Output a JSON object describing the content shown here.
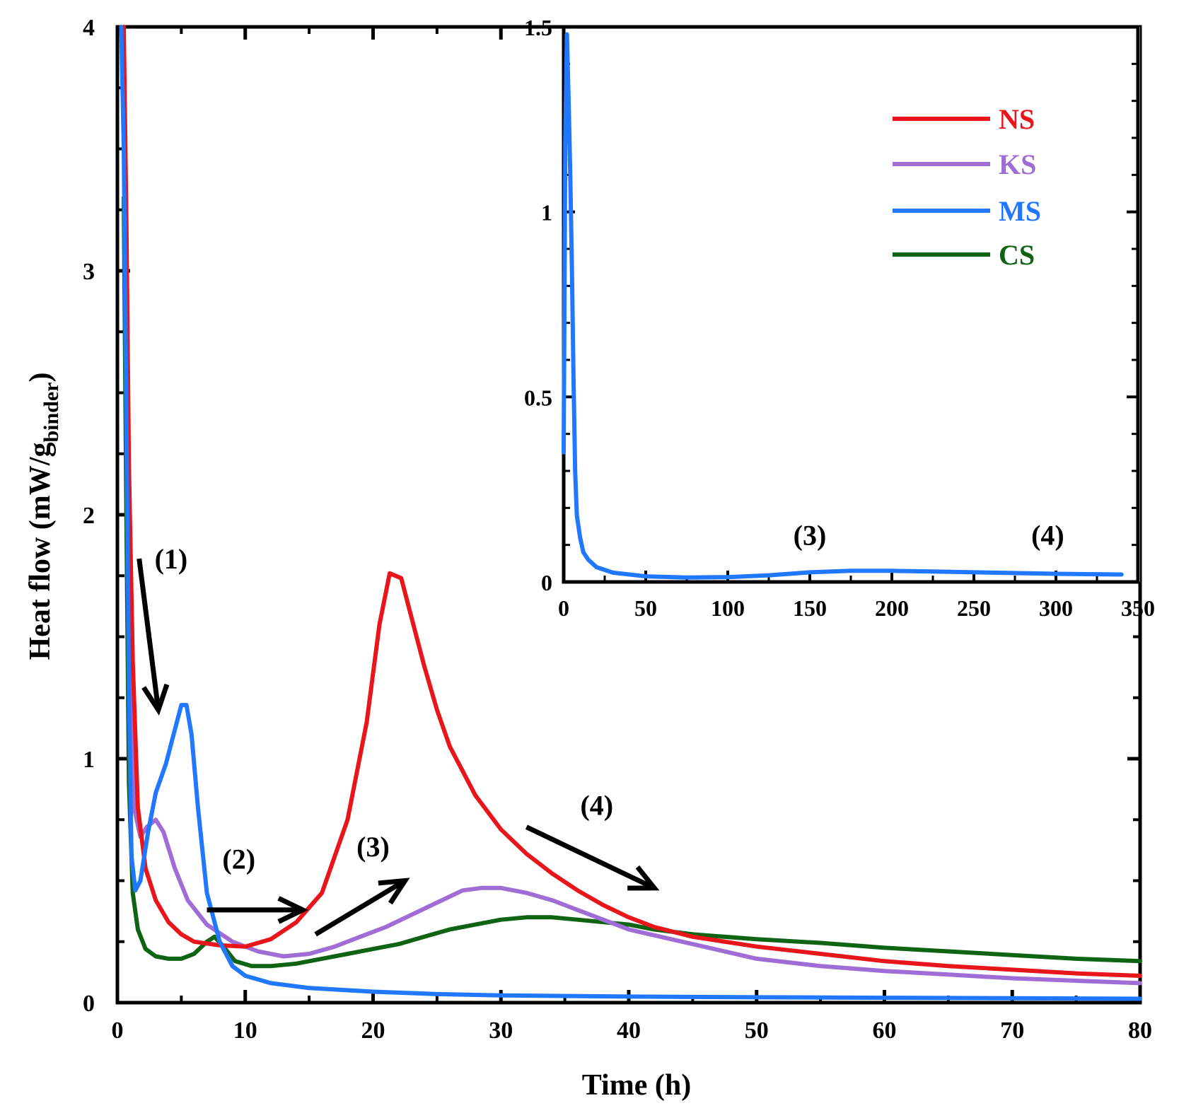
{
  "chart_data": [
    {
      "type": "line",
      "title": "",
      "xlabel": "Time (h)",
      "ylabel_main": "Heat flow (mW/g",
      "ylabel_sub": "binder",
      "ylabel_close": ")",
      "xlim": [
        0,
        80
      ],
      "ylim": [
        0,
        4
      ],
      "xticks": [
        "0",
        "10",
        "20",
        "30",
        "40",
        "50",
        "60",
        "70",
        "80"
      ],
      "yticks": [
        "0",
        "1",
        "2",
        "3",
        "4"
      ],
      "legend_position": "top-right",
      "series": [
        {
          "name": "NS",
          "color": "#e8161b",
          "points": [
            [
              0.5,
              4.0
            ],
            [
              0.7,
              3.2
            ],
            [
              0.9,
              2.2
            ],
            [
              1.2,
              1.4
            ],
            [
              1.6,
              0.8
            ],
            [
              2.2,
              0.55
            ],
            [
              3,
              0.42
            ],
            [
              4,
              0.33
            ],
            [
              5,
              0.28
            ],
            [
              6,
              0.25
            ],
            [
              8,
              0.235
            ],
            [
              10,
              0.23
            ],
            [
              12,
              0.26
            ],
            [
              14,
              0.33
            ],
            [
              16,
              0.45
            ],
            [
              18,
              0.75
            ],
            [
              19.5,
              1.15
            ],
            [
              20.5,
              1.55
            ],
            [
              21.3,
              1.76
            ],
            [
              22.2,
              1.74
            ],
            [
              23,
              1.58
            ],
            [
              24,
              1.38
            ],
            [
              25,
              1.2
            ],
            [
              26,
              1.05
            ],
            [
              28,
              0.85
            ],
            [
              30,
              0.71
            ],
            [
              32,
              0.61
            ],
            [
              34,
              0.53
            ],
            [
              36,
              0.46
            ],
            [
              38,
              0.4
            ],
            [
              40,
              0.35
            ],
            [
              42,
              0.31
            ],
            [
              45,
              0.27
            ],
            [
              50,
              0.23
            ],
            [
              55,
              0.2
            ],
            [
              60,
              0.17
            ],
            [
              65,
              0.15
            ],
            [
              70,
              0.135
            ],
            [
              75,
              0.12
            ],
            [
              80,
              0.11
            ]
          ]
        },
        {
          "name": "KS",
          "color": "#a06cd5",
          "points": [
            [
              0.5,
              3.8
            ],
            [
              0.8,
              2.6
            ],
            [
              1.0,
              1.4
            ],
            [
              1.3,
              0.8
            ],
            [
              1.8,
              0.68
            ],
            [
              2.3,
              0.72
            ],
            [
              3,
              0.75
            ],
            [
              3.6,
              0.7
            ],
            [
              4.5,
              0.55
            ],
            [
              5.5,
              0.42
            ],
            [
              7,
              0.32
            ],
            [
              9,
              0.25
            ],
            [
              11,
              0.21
            ],
            [
              13,
              0.19
            ],
            [
              15,
              0.2
            ],
            [
              17,
              0.23
            ],
            [
              19,
              0.27
            ],
            [
              21,
              0.31
            ],
            [
              23,
              0.36
            ],
            [
              25,
              0.41
            ],
            [
              27,
              0.46
            ],
            [
              28.5,
              0.47
            ],
            [
              30,
              0.47
            ],
            [
              32,
              0.45
            ],
            [
              34,
              0.42
            ],
            [
              36,
              0.38
            ],
            [
              38,
              0.34
            ],
            [
              40,
              0.3
            ],
            [
              45,
              0.24
            ],
            [
              50,
              0.18
            ],
            [
              55,
              0.15
            ],
            [
              60,
              0.13
            ],
            [
              65,
              0.115
            ],
            [
              70,
              0.1
            ],
            [
              75,
              0.09
            ],
            [
              80,
              0.08
            ]
          ]
        },
        {
          "name": "MS",
          "color": "#1f78ff",
          "points": [
            [
              0.3,
              4.0
            ],
            [
              0.5,
              3.5
            ],
            [
              0.7,
              2.4
            ],
            [
              0.9,
              1.3
            ],
            [
              1.1,
              0.6
            ],
            [
              1.4,
              0.46
            ],
            [
              1.8,
              0.5
            ],
            [
              2.4,
              0.7
            ],
            [
              3,
              0.86
            ],
            [
              3.8,
              0.98
            ],
            [
              4.4,
              1.1
            ],
            [
              5,
              1.22
            ],
            [
              5.4,
              1.22
            ],
            [
              5.8,
              1.1
            ],
            [
              6.3,
              0.8
            ],
            [
              7,
              0.45
            ],
            [
              8,
              0.25
            ],
            [
              9,
              0.15
            ],
            [
              10,
              0.11
            ],
            [
              12,
              0.08
            ],
            [
              15,
              0.06
            ],
            [
              20,
              0.045
            ],
            [
              25,
              0.035
            ],
            [
              30,
              0.03
            ],
            [
              40,
              0.025
            ],
            [
              50,
              0.022
            ],
            [
              60,
              0.02
            ],
            [
              70,
              0.018
            ],
            [
              80,
              0.016
            ]
          ]
        },
        {
          "name": "CS",
          "color": "#0f6414",
          "points": [
            [
              0.5,
              3.3
            ],
            [
              0.7,
              2.0
            ],
            [
              0.9,
              0.9
            ],
            [
              1.2,
              0.45
            ],
            [
              1.6,
              0.3
            ],
            [
              2.2,
              0.22
            ],
            [
              3,
              0.19
            ],
            [
              4,
              0.18
            ],
            [
              5,
              0.18
            ],
            [
              6,
              0.2
            ],
            [
              7,
              0.25
            ],
            [
              7.6,
              0.27
            ],
            [
              8.3,
              0.23
            ],
            [
              9.2,
              0.17
            ],
            [
              10.5,
              0.15
            ],
            [
              12,
              0.15
            ],
            [
              14,
              0.16
            ],
            [
              16,
              0.18
            ],
            [
              18,
              0.2
            ],
            [
              20,
              0.22
            ],
            [
              22,
              0.24
            ],
            [
              24,
              0.27
            ],
            [
              26,
              0.3
            ],
            [
              28,
              0.32
            ],
            [
              30,
              0.34
            ],
            [
              32,
              0.35
            ],
            [
              34,
              0.35
            ],
            [
              36,
              0.34
            ],
            [
              38,
              0.33
            ],
            [
              40,
              0.32
            ],
            [
              42,
              0.3
            ],
            [
              45,
              0.28
            ],
            [
              50,
              0.26
            ],
            [
              55,
              0.245
            ],
            [
              60,
              0.225
            ],
            [
              65,
              0.21
            ],
            [
              70,
              0.195
            ],
            [
              75,
              0.18
            ],
            [
              80,
              0.17
            ]
          ]
        }
      ],
      "annotations": [
        {
          "label": "(1)",
          "x": 4.2,
          "y": 1.78,
          "arrow_from": [
            1.7,
            1.82
          ],
          "arrow_to": [
            3.2,
            1.2
          ]
        },
        {
          "label": "(2)",
          "x": 9.5,
          "y": 0.55,
          "arrow_from": [
            7.0,
            0.38
          ],
          "arrow_to": [
            14.5,
            0.38
          ]
        },
        {
          "label": "(3)",
          "x": 20,
          "y": 0.6,
          "arrow_from": [
            15.5,
            0.28
          ],
          "arrow_to": [
            22.5,
            0.5
          ]
        },
        {
          "label": "(4)",
          "x": 37.5,
          "y": 0.77,
          "arrow_from": [
            32,
            0.72
          ],
          "arrow_to": [
            42,
            0.47
          ]
        }
      ]
    },
    {
      "type": "line",
      "title": "",
      "inset": true,
      "xlabel": "",
      "ylabel": "",
      "xlim": [
        0,
        350
      ],
      "ylim": [
        0,
        1.5
      ],
      "xticks": [
        "0",
        "50",
        "100",
        "150",
        "200",
        "250",
        "300",
        "350"
      ],
      "yticks": [
        "0",
        "0.5",
        "1",
        "1.5"
      ],
      "series": [
        {
          "name": "MS",
          "color": "#1f78ff",
          "points": [
            [
              0,
              0.35
            ],
            [
              1,
              1.2
            ],
            [
              2,
              1.48
            ],
            [
              3,
              1.3
            ],
            [
              4,
              1.1
            ],
            [
              5,
              0.85
            ],
            [
              6,
              0.55
            ],
            [
              7,
              0.3
            ],
            [
              8,
              0.18
            ],
            [
              10,
              0.12
            ],
            [
              12,
              0.08
            ],
            [
              15,
              0.06
            ],
            [
              20,
              0.04
            ],
            [
              30,
              0.025
            ],
            [
              50,
              0.015
            ],
            [
              75,
              0.012
            ],
            [
              100,
              0.013
            ],
            [
              125,
              0.018
            ],
            [
              150,
              0.026
            ],
            [
              175,
              0.03
            ],
            [
              200,
              0.03
            ],
            [
              225,
              0.028
            ],
            [
              250,
              0.026
            ],
            [
              300,
              0.022
            ],
            [
              340,
              0.02
            ]
          ]
        }
      ],
      "annotations": [
        {
          "label": "(3)",
          "x": 150,
          "y": 0.1
        },
        {
          "label": "(4)",
          "x": 295,
          "y": 0.1
        }
      ]
    }
  ]
}
